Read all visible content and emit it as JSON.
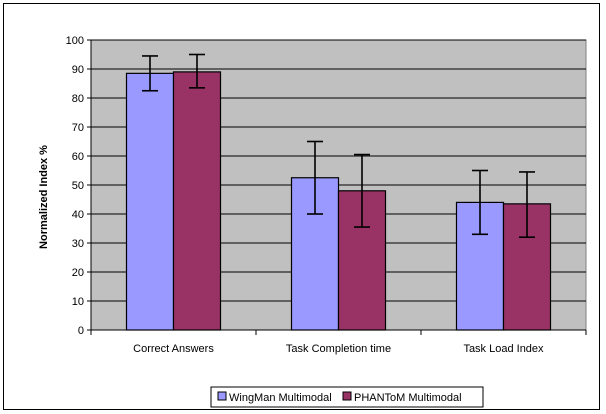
{
  "chart_data": {
    "type": "bar",
    "categories": [
      "Correct Answers",
      "Task Completion time",
      "Task Load Index"
    ],
    "series": [
      {
        "name": "WingMan Multimodal",
        "color": "#9999FF",
        "values": [
          88.5,
          52.5,
          44.0
        ],
        "err_low": [
          82.5,
          40.0,
          33.0
        ],
        "err_high": [
          94.5,
          65.0,
          55.0
        ]
      },
      {
        "name": "PHANToM Multimodal",
        "color": "#993366",
        "values": [
          89.0,
          48.0,
          43.5
        ],
        "err_low": [
          83.5,
          35.5,
          32.0
        ],
        "err_high": [
          95.0,
          60.5,
          54.5
        ]
      }
    ],
    "ylabel": "Normalized Index %",
    "xlabel": "",
    "ylim": [
      0,
      100
    ],
    "yticks": [
      0,
      10,
      20,
      30,
      40,
      50,
      60,
      70,
      80,
      90,
      100
    ],
    "plot_background": "#C0C0C0",
    "grid": true,
    "legend_position": "bottom"
  }
}
